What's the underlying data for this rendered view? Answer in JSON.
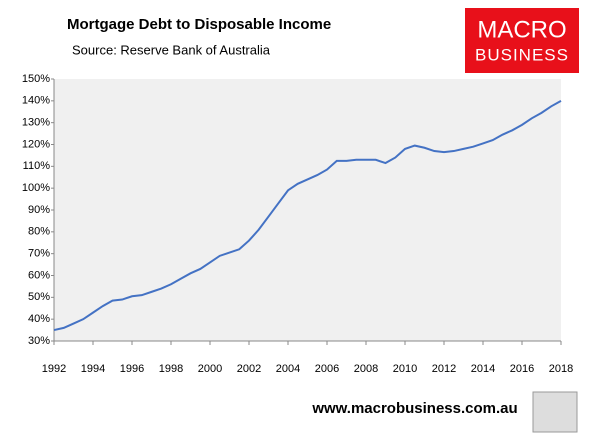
{
  "chart_data": {
    "type": "line",
    "title": "Mortgage Debt to Disposable Income",
    "subtitle": "Source: Reserve Bank of Australia",
    "x": [
      1992,
      1992.5,
      1993,
      1993.5,
      1994,
      1994.5,
      1995,
      1995.5,
      1996,
      1996.5,
      1997,
      1997.5,
      1998,
      1998.5,
      1999,
      1999.5,
      2000,
      2000.5,
      2001,
      2001.5,
      2002,
      2002.5,
      2003,
      2003.5,
      2004,
      2004.5,
      2005,
      2005.5,
      2006,
      2006.5,
      2007,
      2007.5,
      2008,
      2008.5,
      2009,
      2009.5,
      2010,
      2010.5,
      2011,
      2011.5,
      2012,
      2012.5,
      2013,
      2013.5,
      2014,
      2014.5,
      2015,
      2015.5,
      2016,
      2016.5,
      2017,
      2017.5,
      2018
    ],
    "series": [
      {
        "color": "#4472c4",
        "values": [
          35,
          36,
          38,
          40,
          43,
          46,
          48.5,
          49,
          50.5,
          51,
          52.5,
          54,
          56,
          58.5,
          61,
          63,
          66,
          69,
          70.5,
          72,
          76,
          81,
          87,
          93,
          99,
          102,
          104,
          106,
          108.5,
          112.5,
          112.5,
          113,
          113,
          113,
          111.5,
          114,
          118,
          119.5,
          118.5,
          117,
          116.5,
          117,
          118,
          119,
          120.5,
          122,
          124.5,
          126.5,
          129,
          132,
          134.5,
          137.5,
          140
        ]
      }
    ],
    "xlim": [
      1992,
      2018
    ],
    "xticks": [
      1992,
      1994,
      1996,
      1998,
      2000,
      2002,
      2004,
      2006,
      2008,
      2010,
      2012,
      2014,
      2016,
      2018
    ],
    "ylim": [
      30,
      150
    ],
    "yticks": [
      {
        "value": 30,
        "label": "30%"
      },
      {
        "value": 40,
        "label": "40%"
      },
      {
        "value": 50,
        "label": "50%"
      },
      {
        "value": 60,
        "label": "60%"
      },
      {
        "value": 70,
        "label": "70%"
      },
      {
        "value": 80,
        "label": "80%"
      },
      {
        "value": 90,
        "label": "90%"
      },
      {
        "value": 100,
        "label": "100%"
      },
      {
        "value": 110,
        "label": "110%"
      },
      {
        "value": 120,
        "label": "120%"
      },
      {
        "value": 130,
        "label": "130%"
      },
      {
        "value": 140,
        "label": "140%"
      },
      {
        "value": 150,
        "label": "150%"
      }
    ],
    "grid": false
  },
  "logo": {
    "line1": "MACRO",
    "line2": "BUSINESS"
  },
  "footer": "www.macrobusiness.com.au"
}
